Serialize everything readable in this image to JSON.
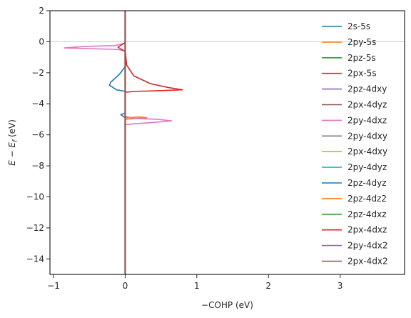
{
  "chart_data": {
    "type": "line",
    "title": "",
    "xlabel": "−COHP (eV)",
    "ylabel": "E − E_f (eV)",
    "ylabel_parts": {
      "main": "E − E",
      "sub": "f",
      "unit": " (eV)"
    },
    "xlim": [
      -1.05,
      3.9
    ],
    "ylim": [
      -15,
      2
    ],
    "xticks": [
      -1,
      0,
      1,
      2,
      3
    ],
    "xtick_labels": [
      "−1",
      "0",
      "1",
      "2",
      "3"
    ],
    "yticks": [
      2,
      0,
      -2,
      -4,
      -6,
      -8,
      -10,
      -12,
      -14
    ],
    "ytick_labels": [
      "2",
      "0",
      "−2",
      "−4",
      "−6",
      "−8",
      "−10",
      "−12",
      "−14"
    ],
    "fermi_line": {
      "y": 0,
      "color": "#cccccc"
    },
    "zero_line": {
      "x": 0
    },
    "legend_position": "top-right",
    "grid": false,
    "series": [
      {
        "name": "2s-5s",
        "color": "#1f77b4",
        "points": [
          [
            0,
            2
          ],
          [
            0,
            -1.6
          ],
          [
            -0.08,
            -2.1
          ],
          [
            -0.2,
            -2.6
          ],
          [
            -0.22,
            -2.8
          ],
          [
            -0.12,
            -3.1
          ],
          [
            0,
            -3.2
          ],
          [
            0,
            -4.6
          ],
          [
            -0.06,
            -4.7
          ],
          [
            0,
            -4.9
          ],
          [
            0,
            -15
          ]
        ]
      },
      {
        "name": "2py-5s",
        "color": "#ff7f0e",
        "points": [
          [
            0,
            2
          ],
          [
            0,
            -4.9
          ],
          [
            0.2,
            -4.85
          ],
          [
            0.3,
            -4.9
          ],
          [
            0.15,
            -4.95
          ],
          [
            0,
            -5.0
          ],
          [
            0,
            -15
          ]
        ]
      },
      {
        "name": "2pz-5s",
        "color": "#2ca02c",
        "points": [
          [
            0,
            2
          ],
          [
            0,
            -15
          ]
        ]
      },
      {
        "name": "2px-5s",
        "color": "#d62728",
        "points": [
          [
            0,
            2
          ],
          [
            0,
            -0.5
          ],
          [
            0.02,
            -1.5
          ],
          [
            0.12,
            -2.2
          ],
          [
            0.35,
            -2.7
          ],
          [
            0.6,
            -2.95
          ],
          [
            0.8,
            -3.1
          ],
          [
            0.5,
            -3.15
          ],
          [
            0.15,
            -3.2
          ],
          [
            0,
            -3.25
          ],
          [
            0,
            -15
          ]
        ]
      },
      {
        "name": "2pz-4dxy",
        "color": "#9467bd",
        "points": [
          [
            0,
            2
          ],
          [
            0,
            -15
          ]
        ]
      },
      {
        "name": "2px-4dyz",
        "color": "#8c564b",
        "points": [
          [
            0,
            2
          ],
          [
            0,
            -15
          ]
        ]
      },
      {
        "name": "2py-4dxz",
        "color": "#e377c2",
        "points": [
          [
            0,
            2
          ],
          [
            0,
            -0.1
          ],
          [
            -0.15,
            -0.25
          ],
          [
            -0.55,
            -0.3
          ],
          [
            -0.85,
            -0.4
          ],
          [
            -0.45,
            -0.45
          ],
          [
            -0.1,
            -0.5
          ],
          [
            0,
            -0.6
          ],
          [
            0,
            -4.8
          ],
          [
            0.12,
            -4.95
          ],
          [
            0.45,
            -5.0
          ],
          [
            0.65,
            -5.1
          ],
          [
            0.4,
            -5.2
          ],
          [
            0.1,
            -5.3
          ],
          [
            0,
            -5.35
          ],
          [
            0,
            -15
          ]
        ]
      },
      {
        "name": "2py-4dxy",
        "color": "#7f7f7f",
        "points": [
          [
            0,
            2
          ],
          [
            0,
            -15
          ]
        ]
      },
      {
        "name": "2px-4dxy",
        "color": "#bcbd22",
        "points": [
          [
            0,
            2
          ],
          [
            0,
            -15
          ]
        ]
      },
      {
        "name": "2py-4dyz",
        "color": "#17becf",
        "points": [
          [
            0,
            2
          ],
          [
            0,
            -15
          ]
        ]
      },
      {
        "name": "2pz-4dyz",
        "color": "#1f77b4",
        "points": [
          [
            0,
            2
          ],
          [
            0,
            -15
          ]
        ]
      },
      {
        "name": "2pz-4dz2",
        "color": "#ff7f0e",
        "points": [
          [
            0,
            2
          ],
          [
            0,
            -15
          ]
        ]
      },
      {
        "name": "2pz-4dxz",
        "color": "#2ca02c",
        "points": [
          [
            0,
            2
          ],
          [
            0,
            -15
          ]
        ]
      },
      {
        "name": "2px-4dxz",
        "color": "#d62728",
        "points": [
          [
            0,
            2
          ],
          [
            0,
            -0.05
          ],
          [
            -0.05,
            -0.2
          ],
          [
            -0.1,
            -0.35
          ],
          [
            -0.05,
            -0.5
          ],
          [
            0,
            -0.6
          ],
          [
            0,
            -15
          ]
        ]
      },
      {
        "name": "2py-4dx2",
        "color": "#9467bd",
        "points": [
          [
            0,
            2
          ],
          [
            0,
            -15
          ]
        ]
      },
      {
        "name": "2px-4dx2",
        "color": "#8c564b",
        "points": [
          [
            0,
            2
          ],
          [
            0,
            -15
          ]
        ]
      }
    ]
  }
}
